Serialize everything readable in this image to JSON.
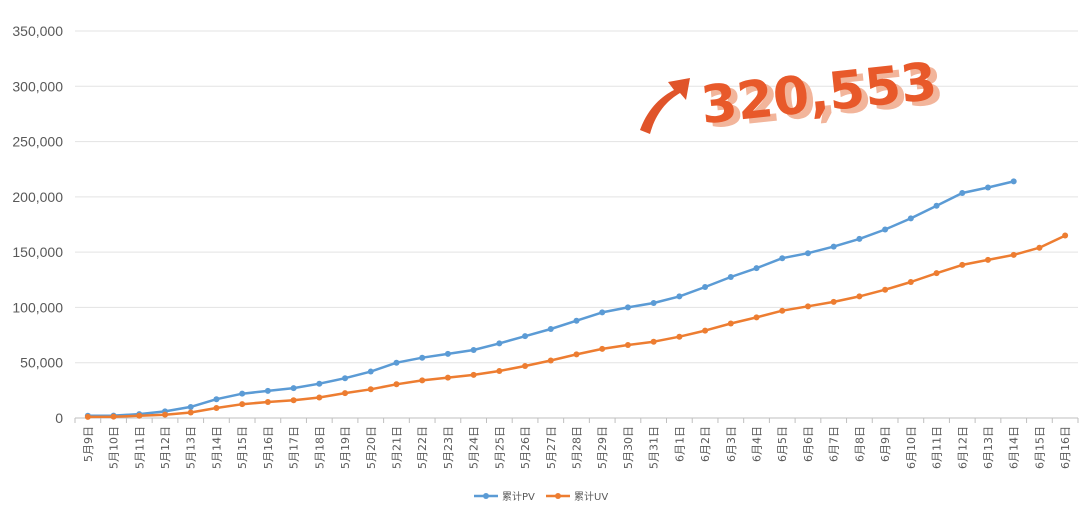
{
  "chart_data": {
    "type": "line",
    "title": "",
    "xlabel": "",
    "ylabel": "",
    "ylim": [
      0,
      350000
    ],
    "y_ticks": [
      "0",
      "50,000",
      "100,000",
      "150,000",
      "200,000",
      "250,000",
      "300,000",
      "350,000"
    ],
    "grid": "horizontal",
    "legend_position": "bottom",
    "categories": [
      "5月9日",
      "5月10日",
      "5月11日",
      "5月12日",
      "5月13日",
      "5月14日",
      "5月15日",
      "5月16日",
      "5月17日",
      "5月18日",
      "5月19日",
      "5月20日",
      "5月21日",
      "5月22日",
      "5月23日",
      "5月24日",
      "5月25日",
      "5月26日",
      "5月27日",
      "5月28日",
      "5月29日",
      "5月30日",
      "5月31日",
      "6月1日",
      "6月2日",
      "6月3日",
      "6月4日",
      "6月5日",
      "6月6日",
      "6月7日",
      "6月8日",
      "6月9日",
      "6月10日",
      "6月11日",
      "6月12日",
      "6月13日",
      "6月14日",
      "6月15日",
      "6月16日"
    ],
    "series": [
      {
        "name": "累计PV",
        "color": "#5B9BD5",
        "values": [
          2000,
          2200,
          3500,
          6000,
          10000,
          17000,
          22000,
          24500,
          27000,
          31000,
          36000,
          42000,
          50000,
          54500,
          58000,
          61500,
          67500,
          74000,
          80500,
          88000,
          95500,
          100000,
          104000,
          110000,
          118500,
          127500,
          135500,
          144500,
          149000,
          155000,
          162000,
          170500,
          180500,
          192000,
          203500,
          208500,
          214000,
          null,
          null
        ]
      },
      {
        "name": "累计UV",
        "color": "#ED7D31",
        "values": [
          1000,
          1200,
          2000,
          3000,
          5000,
          9000,
          12500,
          14500,
          16000,
          18500,
          22500,
          26000,
          30500,
          34000,
          36500,
          39000,
          42500,
          47000,
          52000,
          57500,
          62500,
          66000,
          69000,
          73500,
          79000,
          85500,
          91000,
          97000,
          101000,
          105000,
          110000,
          116000,
          123000,
          131000,
          138500,
          143000,
          147500,
          154000,
          165000
        ]
      }
    ]
  },
  "callout": {
    "value_text": "320,553",
    "text_color": "#E8592A",
    "shadow_color": "#F2B59B",
    "arrow_color": "#E0542A",
    "arrow_icon": "up-right-arrow-icon"
  }
}
